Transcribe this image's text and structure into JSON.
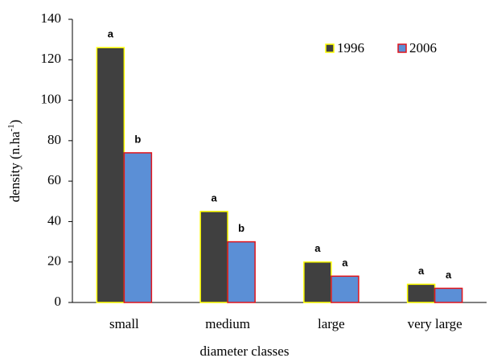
{
  "chart_data": {
    "type": "bar",
    "x_label": "diameter classes",
    "y_label": [
      "density (n.ha",
      "-1",
      ")"
    ],
    "categories": [
      "small",
      "medium",
      "large",
      "very large"
    ],
    "series": [
      {
        "name": "1996",
        "color": "#404040",
        "edgecolor": "#ffff00",
        "values": [
          126,
          45,
          20,
          9
        ],
        "letters": [
          "a",
          "a",
          "a",
          "a"
        ]
      },
      {
        "name": "2006",
        "color": "#5b8fd6",
        "edgecolor": "#e0141b",
        "values": [
          74,
          30,
          13,
          7
        ],
        "letters": [
          "b",
          "b",
          "a",
          "a"
        ]
      }
    ],
    "ylim": [
      0,
      140
    ],
    "yticks": [
      0,
      20,
      40,
      60,
      80,
      100,
      120,
      140
    ],
    "legend": "top-right",
    "grid": false
  }
}
